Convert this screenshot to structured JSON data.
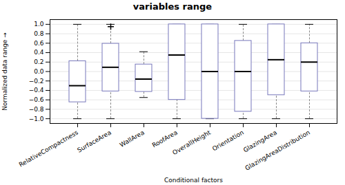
{
  "chart_data": {
    "type": "box",
    "title": "variables range",
    "xlabel": "Conditional factors",
    "ylabel": "Normalized data range",
    "categories": [
      "RelativeCompactness",
      "SurfaceArea",
      "WallArea",
      "RoofArea",
      "OverallHeight",
      "Orientation",
      "GlazingArea",
      "GlazingAreaDistribution"
    ],
    "boxes": [
      {
        "whislo": -1.0,
        "q1": -0.65,
        "med": -0.3,
        "q3": 0.22,
        "whishi": 1.0,
        "fliers": []
      },
      {
        "whislo": -1.0,
        "q1": -0.42,
        "med": 0.09,
        "q3": 0.59,
        "whishi": 1.0,
        "fliers": [
          0.95
        ]
      },
      {
        "whislo": -0.55,
        "q1": -0.43,
        "med": -0.16,
        "q3": 0.15,
        "whishi": 0.42,
        "fliers": []
      },
      {
        "whislo": -1.0,
        "q1": -0.6,
        "med": 0.35,
        "q3": 1.0,
        "whishi": 1.0,
        "fliers": []
      },
      {
        "whislo": -1.0,
        "q1": -1.0,
        "med": 0.0,
        "q3": 1.0,
        "whishi": 1.0,
        "fliers": []
      },
      {
        "whislo": -1.0,
        "q1": -0.85,
        "med": 0.0,
        "q3": 0.65,
        "whishi": 1.0,
        "fliers": []
      },
      {
        "whislo": -1.0,
        "q1": -0.5,
        "med": 0.25,
        "q3": 1.0,
        "whishi": 1.0,
        "fliers": []
      },
      {
        "whislo": -1.0,
        "q1": -0.42,
        "med": 0.2,
        "q3": 0.6,
        "whishi": 1.0,
        "fliers": []
      }
    ],
    "color": "#7777bb",
    "ylim": [
      -1.1,
      1.1
    ],
    "yticks": [
      {
        "value": -1.0,
        "label": "−1.0"
      },
      {
        "value": -0.8,
        "label": "−0.8"
      },
      {
        "value": -0.6,
        "label": "−0.6"
      },
      {
        "value": -0.4,
        "label": "−0.4"
      },
      {
        "value": -0.2,
        "label": "−0.2"
      },
      {
        "value": 0.0,
        "label": "0.0"
      },
      {
        "value": 0.2,
        "label": "0.2"
      },
      {
        "value": 0.4,
        "label": "0.4"
      },
      {
        "value": 0.6,
        "label": "0.6"
      },
      {
        "value": 0.8,
        "label": "0.8"
      },
      {
        "value": 1.0,
        "label": "1.0"
      }
    ],
    "grid": true
  }
}
